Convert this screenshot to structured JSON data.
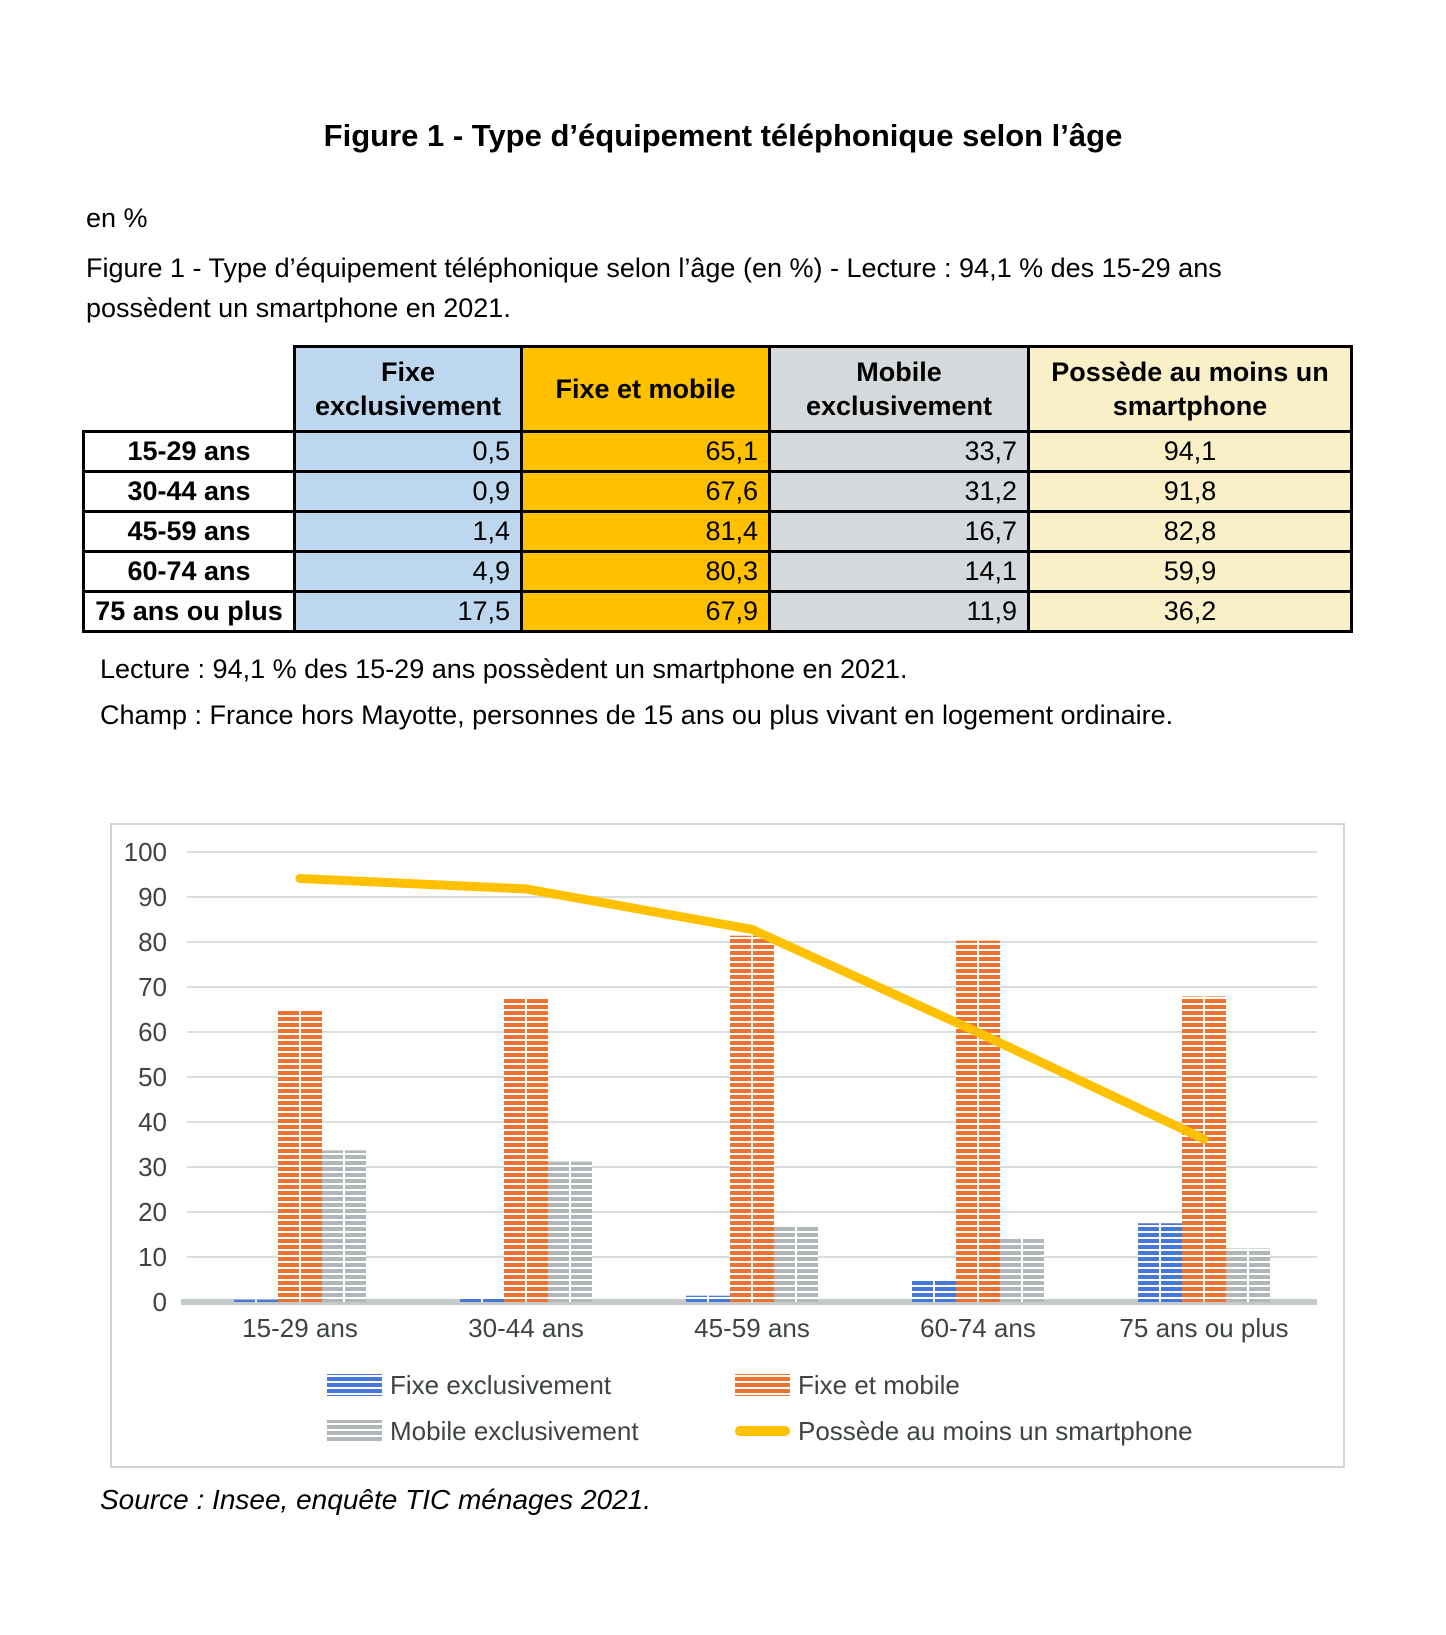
{
  "page": {
    "title": "Figure 1 - Type d’équipement téléphonique selon l’âge",
    "unit_label": "en %",
    "intro": "Figure 1 - Type d’équipement téléphonique selon l’âge (en %) - Lecture : 94,1 % des 15-29 ans possèdent un smartphone en 2021.",
    "note_lecture": "Lecture : 94,1 % des 15-29 ans possèdent un smartphone en 2021.",
    "note_champ": "Champ : France hors Mayotte, personnes de 15 ans ou plus vivant en logement ordinaire.",
    "source": "Source : Insee, enquête TIC ménages 2021."
  },
  "table": {
    "columns": [
      {
        "label": "Fixe exclusivement",
        "bg": "#BDD7EE",
        "align": "right"
      },
      {
        "label": "Fixe et mobile",
        "bg": "#FFC000",
        "align": "right"
      },
      {
        "label": "Mobile exclusivement",
        "bg": "#D6D9DC",
        "align": "right"
      },
      {
        "label": "Possède au moins un smartphone",
        "bg": "#FAF0C8",
        "align": "center"
      }
    ],
    "rows": [
      {
        "label": "15-29 ans",
        "values": [
          "0,5",
          "65,1",
          "33,7",
          "94,1"
        ]
      },
      {
        "label": "30-44 ans",
        "values": [
          "0,9",
          "67,6",
          "31,2",
          "91,8"
        ]
      },
      {
        "label": "45-59 ans",
        "values": [
          "1,4",
          "81,4",
          "16,7",
          "82,8"
        ]
      },
      {
        "label": "60-74 ans",
        "values": [
          "4,9",
          "80,3",
          "14,1",
          "59,9"
        ]
      },
      {
        "label": "75 ans ou plus",
        "values": [
          "17,5",
          "67,9",
          "11,9",
          "36,2"
        ]
      }
    ]
  },
  "chart_data": {
    "type": "bar+line",
    "title": "",
    "xlabel": "",
    "ylabel": "",
    "categories": [
      "15-29 ans",
      "30-44 ans",
      "45-59 ans",
      "60-74 ans",
      "75 ans ou plus"
    ],
    "series": [
      {
        "name": "Fixe exclusivement",
        "type": "bar",
        "color": "#4678DC",
        "values": [
          0.5,
          0.9,
          1.4,
          4.9,
          17.5
        ]
      },
      {
        "name": "Fixe et mobile",
        "type": "bar",
        "color": "#EE7130",
        "values": [
          65.1,
          67.6,
          81.4,
          80.3,
          67.9
        ]
      },
      {
        "name": "Mobile exclusivement",
        "type": "bar",
        "color": "#B1B7B9",
        "values": [
          33.7,
          31.2,
          16.7,
          14.1,
          11.9
        ]
      },
      {
        "name": "Possède au moins un smartphone",
        "type": "line",
        "color": "#FFC000",
        "values": [
          94.1,
          91.8,
          82.8,
          59.9,
          36.2
        ]
      }
    ],
    "ylim": [
      0,
      100
    ],
    "ytick_step": 10,
    "grid": true,
    "legend_position": "bottom",
    "colors": {
      "gridline": "#D9DEDE",
      "baseline": "#C4CACA",
      "axis_text": "#3E4446"
    }
  }
}
